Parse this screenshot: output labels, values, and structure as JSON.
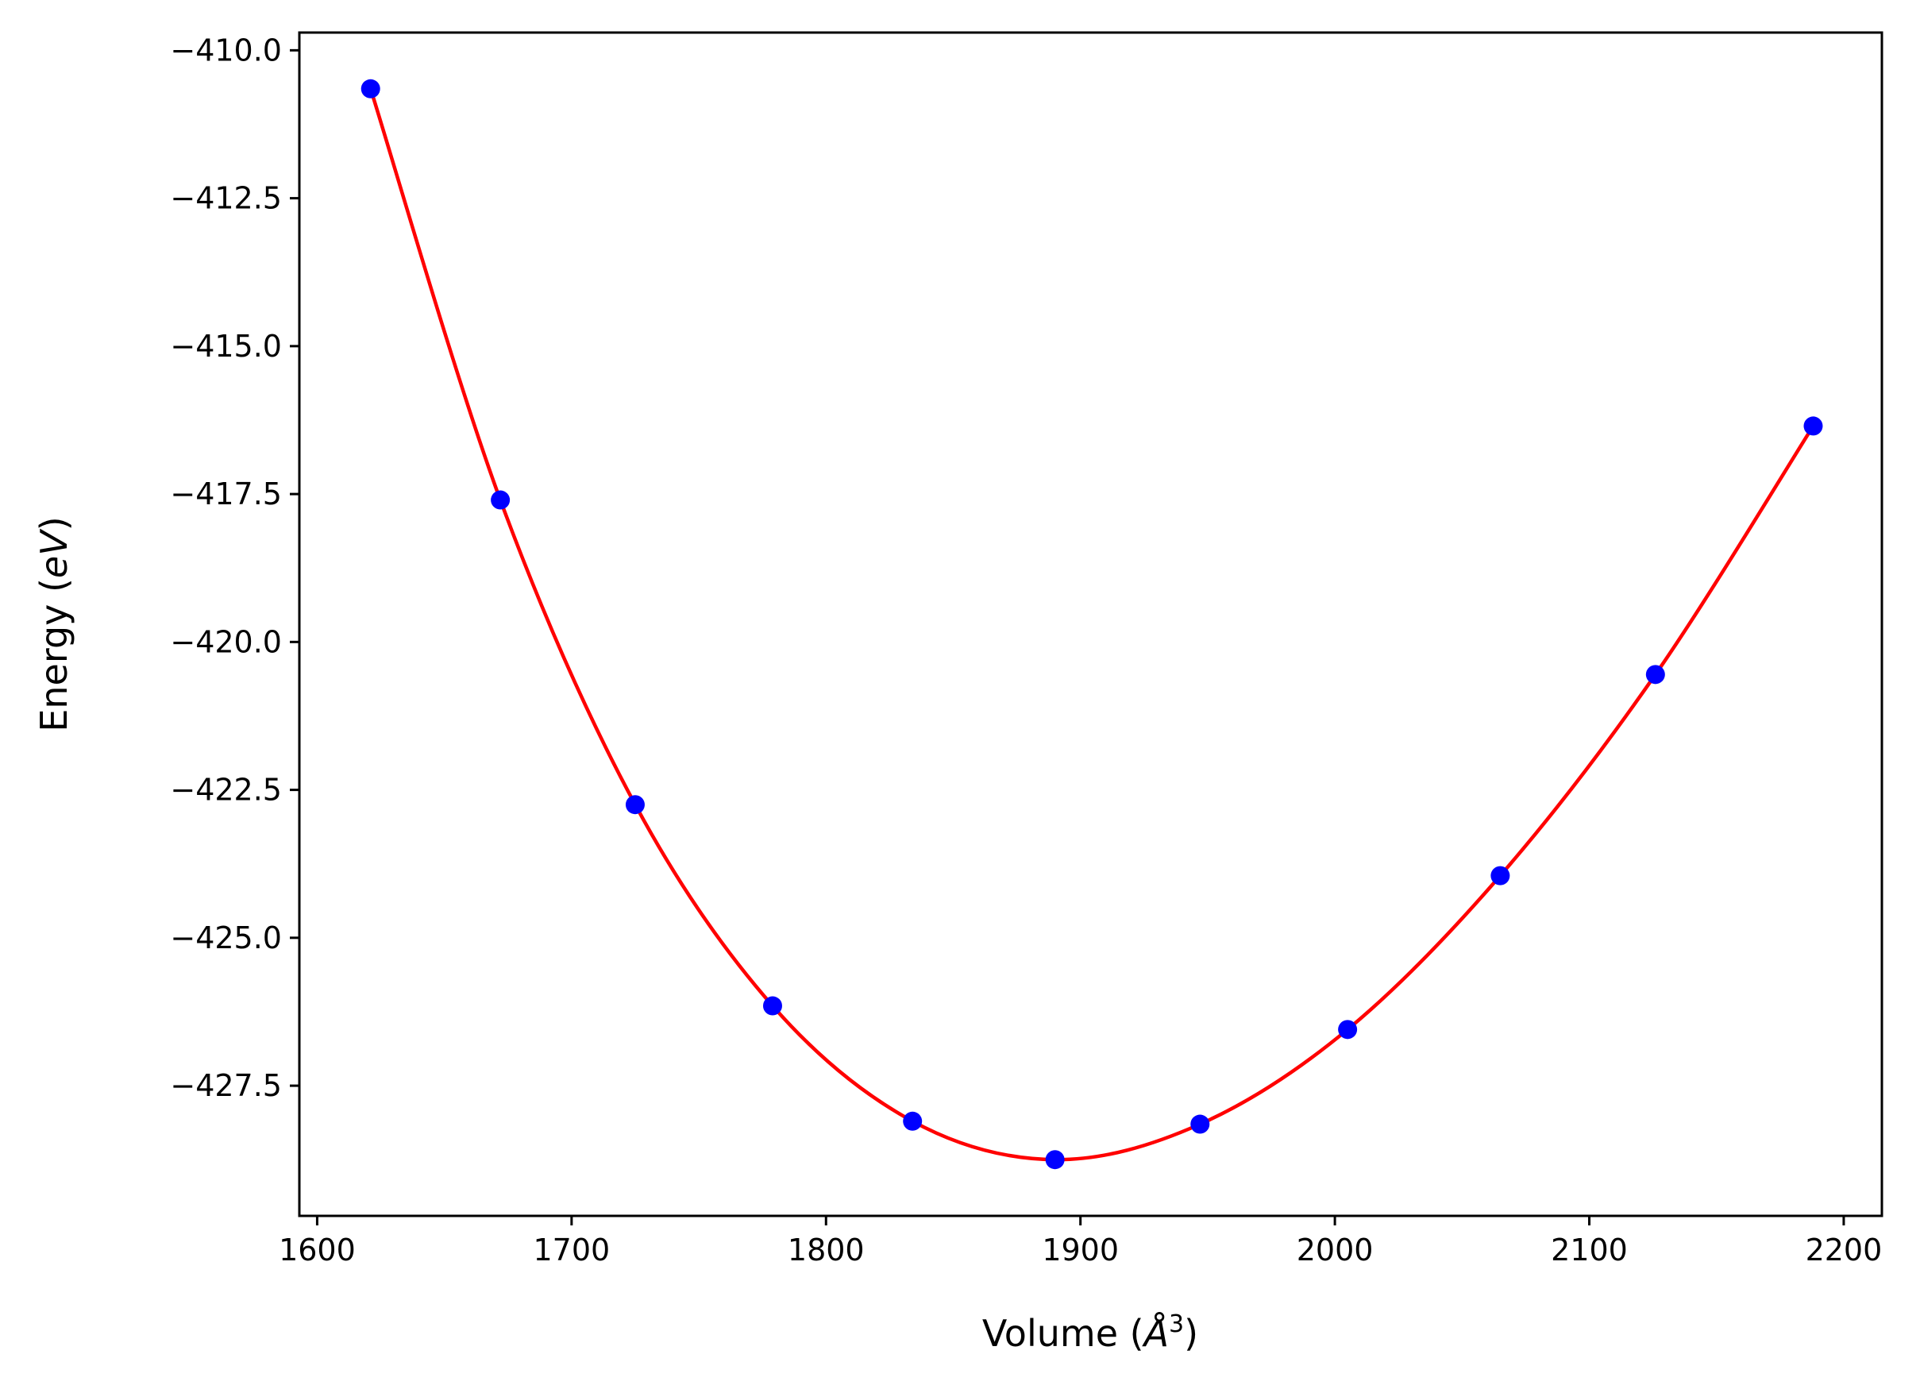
{
  "chart_data": {
    "type": "line",
    "xlabel": "Volume (Å³)",
    "ylabel": "Energy (eV)",
    "xlabel_parts": {
      "prefix": "Volume (",
      "unit": "Å",
      "power": "3",
      "suffix": ")"
    },
    "ylabel_parts": {
      "prefix": "Energy (",
      "unit": "eV",
      "suffix": ")"
    },
    "xlim": [
      1593,
      2215
    ],
    "ylim": [
      -429.7,
      -409.7
    ],
    "x_ticks": [
      1600,
      1700,
      1800,
      1900,
      2000,
      2100,
      2200
    ],
    "x_tick_labels": [
      "1600",
      "1700",
      "1800",
      "1900",
      "2000",
      "2100",
      "2200"
    ],
    "y_ticks": [
      -410.0,
      -412.5,
      -415.0,
      -417.5,
      -420.0,
      -422.5,
      -425.0,
      -427.5
    ],
    "y_tick_labels": [
      "−410.0",
      "−412.5",
      "−415.0",
      "−417.5",
      "−420.0",
      "−422.5",
      "−425.0",
      "−427.5"
    ],
    "grid": false,
    "series": [
      {
        "kind": "scatter",
        "color": "#0000ff",
        "x": [
          1621,
          1672,
          1725,
          1779,
          1834,
          1890,
          1947,
          2005,
          2065,
          2126,
          2188
        ],
        "y": [
          -410.65,
          -417.6,
          -422.75,
          -426.15,
          -428.1,
          -428.75,
          -428.15,
          -426.55,
          -423.95,
          -420.55,
          -416.35
        ]
      },
      {
        "kind": "line",
        "color": "#ff0000",
        "x": [
          1621,
          1672,
          1725,
          1779,
          1834,
          1890,
          1947,
          2005,
          2065,
          2126,
          2188
        ],
        "y": [
          -410.65,
          -417.6,
          -422.75,
          -426.15,
          -428.1,
          -428.75,
          -428.15,
          -426.55,
          -423.95,
          -420.55,
          -416.35
        ]
      }
    ]
  }
}
